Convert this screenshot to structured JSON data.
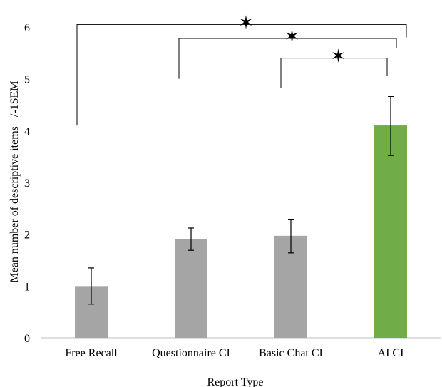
{
  "chart_data": {
    "type": "bar",
    "title": "",
    "xlabel": "Report Type",
    "ylabel": "Mean number of descriptive items +/-1SEM",
    "ylim": [
      0,
      6
    ],
    "yticks": [
      "0",
      "1",
      "2",
      "3",
      "4",
      "5",
      "6"
    ],
    "grid": false,
    "categories": [
      "Free Recall",
      "Questionnaire CI",
      "Basic Chat CI",
      "AI CI"
    ],
    "values": [
      1.0,
      1.9,
      1.97,
      4.1
    ],
    "error_upper": [
      1.35,
      2.12,
      2.29,
      4.66
    ],
    "error_lower": [
      0.65,
      1.69,
      1.64,
      3.52
    ],
    "bar_colors": [
      "#a5a5a5",
      "#a5a5a5",
      "#a5a5a5",
      "#70ad47"
    ],
    "significance": [
      {
        "from": 0,
        "to": 3,
        "left_y": 4.1,
        "right_y": 5.8,
        "top_y": 6.05,
        "symbol": "✶"
      },
      {
        "from": 1,
        "to": 3,
        "left_y": 5.0,
        "right_y": 5.6,
        "top_y": 5.78,
        "symbol": "✶"
      },
      {
        "from": 2,
        "to": 3,
        "left_y": 4.83,
        "right_y": 5.05,
        "top_y": 5.4,
        "symbol": "✶"
      }
    ]
  }
}
